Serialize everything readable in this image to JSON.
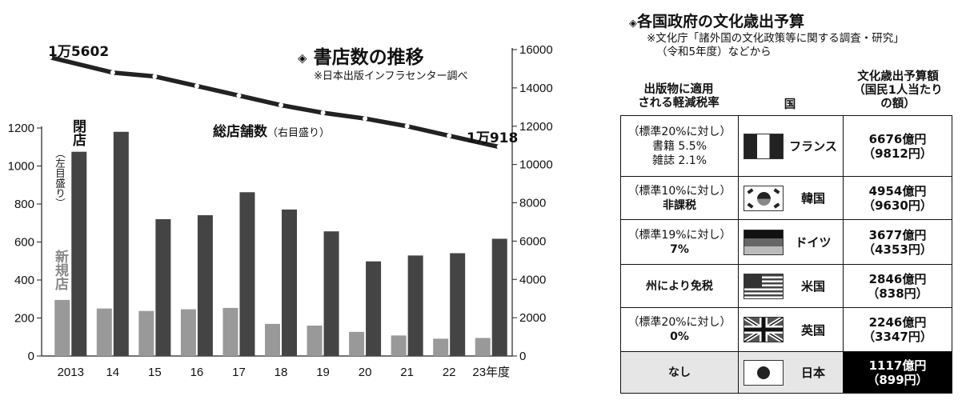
{
  "chart_data": {
    "type": "bar+line",
    "title": "書店数の推移",
    "source": "※日本出版インフラセンター調べ",
    "categories": [
      "2013",
      "14",
      "15",
      "16",
      "17",
      "18",
      "19",
      "20",
      "21",
      "22",
      "23年度"
    ],
    "series": [
      {
        "name": "新規店",
        "axis": "left",
        "type": "bar",
        "color": "#999999",
        "values": [
          295,
          250,
          237,
          246,
          253,
          169,
          160,
          127,
          108,
          91,
          95
        ]
      },
      {
        "name": "閉店",
        "axis": "left",
        "type": "bar",
        "color": "#444444",
        "values": [
          1075,
          1180,
          720,
          741,
          862,
          771,
          656,
          498,
          529,
          541,
          617
        ]
      },
      {
        "name": "総店舗数",
        "axis": "right",
        "type": "line",
        "color": "#222222",
        "values": [
          15602,
          14800,
          14600,
          14100,
          13600,
          13100,
          12700,
          12400,
          12000,
          11500,
          10918
        ]
      }
    ],
    "left_axis": {
      "ylim": [
        0,
        1200
      ],
      "ticks": [
        0,
        200,
        400,
        600,
        800,
        1000,
        1200
      ],
      "label": "（左目盛り）"
    },
    "right_axis": {
      "ylim": [
        0,
        16000
      ],
      "ticks": [
        0,
        2000,
        4000,
        6000,
        8000,
        10000,
        12000,
        14000,
        16000
      ]
    },
    "line_label": "総店舗数",
    "line_label_note": "（右目盛り）",
    "bar_label_close": "閉店",
    "bar_label_new": "新規店",
    "annot_first": "1万5602",
    "annot_last": "1万918"
  },
  "budget_table": {
    "title": "各国政府の文化歳出予算",
    "note_line1": "※文化庁「諸外国の文化政策等に関する調査・研究」",
    "note_line2": "（令和5年度）などから",
    "header_tax_1": "出版物に適用",
    "header_tax_2": "される軽減税率",
    "header_country": "国",
    "header_budget_1": "文化歳出予算額",
    "header_budget_2": "（国民1人当たり",
    "header_budget_3": "の額）",
    "rows": [
      {
        "tax_line1": "（標準20%に対し）",
        "tax_line2": "書籍 5.5%",
        "tax_line3": "雑誌 2.1%",
        "country": "フランス",
        "flag": "france-flag",
        "budget": "6676億円",
        "per_capita": "（9812円）"
      },
      {
        "tax_line1": "（標準10%に対し）",
        "tax_line2": "非課税",
        "tax_line3": "",
        "country": "韓国",
        "flag": "korea-flag",
        "budget": "4954億円",
        "per_capita": "（9630円）"
      },
      {
        "tax_line1": "（標準19%に対し）",
        "tax_line2": "7%",
        "tax_line3": "",
        "country": "ドイツ",
        "flag": "germany-flag",
        "budget": "3677億円",
        "per_capita": "（4353円）"
      },
      {
        "tax_line1": "州により免税",
        "tax_line2": "",
        "tax_line3": "",
        "country": "米国",
        "flag": "usa-flag",
        "budget": "2846億円",
        "per_capita": "（838円）"
      },
      {
        "tax_line1": "（標準20%に対し）",
        "tax_line2": "0%",
        "tax_line3": "",
        "country": "英国",
        "flag": "uk-flag",
        "budget": "2246億円",
        "per_capita": "（3347円）"
      },
      {
        "tax_line1": "なし",
        "tax_line2": "",
        "tax_line3": "",
        "country": "日本",
        "flag": "japan-flag",
        "budget": "1117億円",
        "per_capita": "（899円）"
      }
    ]
  }
}
